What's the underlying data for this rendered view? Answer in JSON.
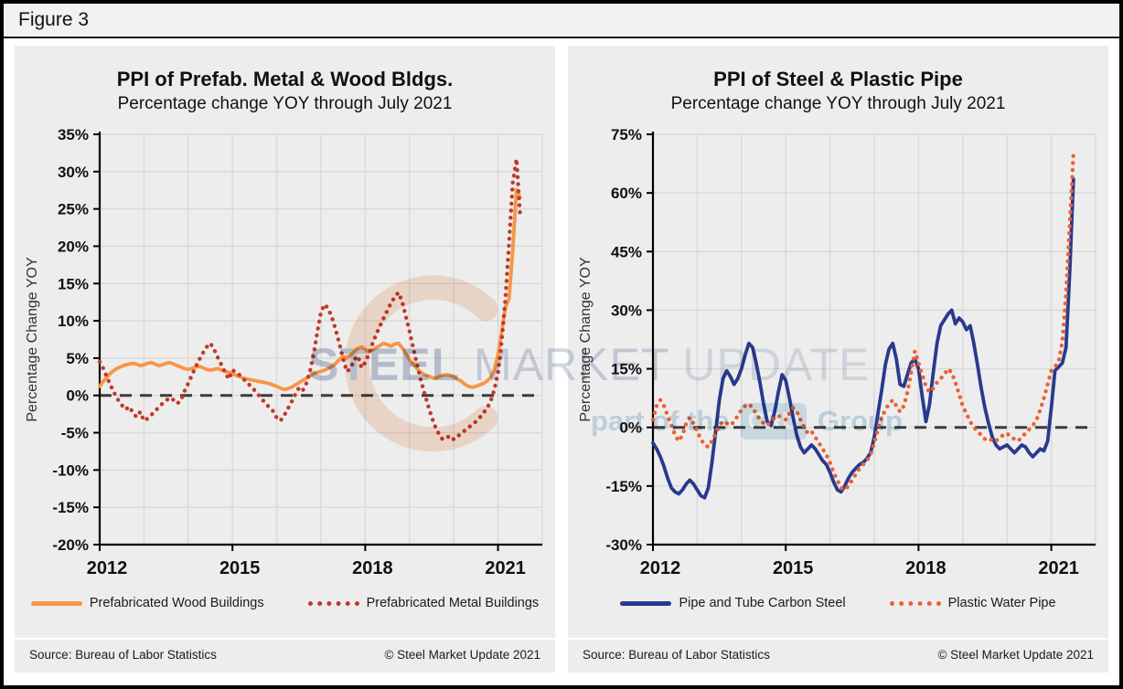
{
  "figure_label": "Figure 3",
  "watermark": {
    "steel": "STEEL",
    "market": "MARKET",
    "update": "UPDATE",
    "part_of": "part of the",
    "cru": "CRU",
    "group": "Group",
    "crescent_color": "#e8813e",
    "text_color_primary": "#8fa0bf",
    "text_color_secondary": "#9dc3de"
  },
  "panels": [
    {
      "source": "Source: Bureau of Labor Statistics",
      "copyright": "© Steel Market Update 2021"
    },
    {
      "source": "Source: Bureau of Labor Statistics",
      "copyright": "© Steel Market Update 2021"
    }
  ],
  "chart_data": [
    {
      "type": "line",
      "title": "PPI of Prefab. Metal & Wood Bldgs.",
      "subtitle": "Percentage change YOY through July 2021",
      "ylabel": "Percentage Change YOY",
      "x_start": 2012,
      "x_end": 2022,
      "x_frequency": "monthly",
      "x_range_label": "Jan 2012 - Jul 2021",
      "xticks": [
        2012,
        2015,
        2018,
        2021
      ],
      "ylim": [
        -20,
        35
      ],
      "ystep": 5,
      "grid": true,
      "zero_line": "dashed",
      "legend_position": "bottom",
      "series": [
        {
          "name": "Prefabricated Wood Buildings",
          "color": "#F79646",
          "style": "solid",
          "values": [
            1.2,
            1.9,
            2.5,
            3.0,
            3.4,
            3.7,
            3.9,
            4.1,
            4.2,
            4.3,
            4.2,
            4.0,
            4.1,
            4.3,
            4.4,
            4.2,
            4.0,
            4.1,
            4.3,
            4.4,
            4.2,
            4.0,
            3.8,
            3.6,
            3.5,
            3.6,
            3.8,
            3.9,
            3.7,
            3.5,
            3.4,
            3.5,
            3.6,
            3.4,
            3.2,
            3.1,
            2.9,
            2.7,
            2.5,
            2.3,
            2.2,
            2.1,
            2.0,
            1.9,
            1.8,
            1.7,
            1.6,
            1.4,
            1.2,
            1.0,
            0.8,
            0.9,
            1.1,
            1.4,
            1.7,
            2.0,
            2.3,
            2.6,
            2.9,
            3.1,
            3.2,
            3.4,
            3.6,
            3.9,
            4.3,
            4.8,
            5.2,
            5.0,
            5.4,
            5.9,
            6.3,
            6.5,
            6.2,
            5.8,
            6.1,
            6.4,
            6.7,
            7.0,
            6.8,
            6.6,
            6.9,
            7.0,
            6.4,
            5.6,
            4.8,
            4.2,
            3.6,
            3.1,
            2.8,
            2.6,
            2.4,
            2.3,
            2.5,
            2.7,
            2.8,
            2.7,
            2.5,
            2.2,
            1.9,
            1.5,
            1.2,
            1.1,
            1.2,
            1.4,
            1.6,
            1.9,
            2.4,
            3.5,
            5.5,
            8.5,
            11.8,
            13.0,
            19.5,
            27.6,
            26.5
          ]
        },
        {
          "name": "Prefabricated Metal Buildings",
          "color": "#C0392B",
          "style": "dotted",
          "values": [
            4.5,
            3.6,
            2.4,
            1.3,
            0.3,
            -0.6,
            -1.3,
            -1.9,
            -1.5,
            -2.3,
            -2.9,
            -2.2,
            -3.4,
            -3.1,
            -2.6,
            -2.1,
            -1.6,
            -1.1,
            -0.7,
            -0.3,
            -0.6,
            -1.1,
            -0.7,
            0.6,
            1.6,
            2.7,
            3.8,
            4.8,
            5.7,
            6.5,
            7.0,
            6.2,
            5.1,
            4.1,
            3.1,
            2.2,
            3.4,
            3.1,
            2.7,
            2.2,
            1.7,
            1.2,
            0.7,
            0.1,
            -0.5,
            -1.1,
            -1.6,
            -2.1,
            -3.0,
            -3.4,
            -2.7,
            -1.8,
            -0.9,
            0.1,
            1.0,
            0.6,
            1.6,
            3.2,
            5.5,
            8.5,
            11.2,
            12.2,
            11.6,
            10.4,
            8.8,
            6.9,
            4.9,
            3.2,
            3.6,
            4.8,
            5.3,
            3.7,
            4.4,
            5.6,
            7.0,
            8.2,
            9.3,
            10.4,
            11.4,
            12.4,
            13.2,
            13.8,
            12.6,
            10.6,
            8.6,
            6.4,
            4.2,
            2.2,
            0.4,
            -1.3,
            -2.9,
            -4.2,
            -5.2,
            -5.9,
            -5.7,
            -5.4,
            -5.9,
            -5.5,
            -5.1,
            -4.7,
            -4.3,
            -3.9,
            -3.5,
            -3.0,
            -2.4,
            -1.7,
            -0.8,
            0.8,
            3.0,
            7.3,
            13.0,
            20.5,
            28.5,
            31.7,
            24.0
          ]
        }
      ]
    },
    {
      "type": "line",
      "title": "PPI of Steel & Plastic Pipe",
      "subtitle": "Percentage change YOY through July 2021",
      "ylabel": "Percentage Change YOY",
      "x_start": 2012,
      "x_end": 2022,
      "x_frequency": "monthly",
      "x_range_label": "Jan 2012 - Jul 2021",
      "xticks": [
        2012,
        2015,
        2018,
        2021
      ],
      "ylim": [
        -30,
        75
      ],
      "ystep": 15,
      "grid": true,
      "zero_line": "dashed",
      "legend_position": "bottom",
      "series": [
        {
          "name": "Pipe and Tube Carbon Steel",
          "color": "#283A8E",
          "style": "solid",
          "values": [
            -4.0,
            -5.5,
            -7.5,
            -10.0,
            -13.0,
            -15.5,
            -16.5,
            -17.0,
            -16.0,
            -14.5,
            -13.5,
            -14.5,
            -16.0,
            -17.5,
            -18.0,
            -15.5,
            -9.0,
            -1.0,
            7.0,
            12.5,
            14.5,
            13.0,
            11.0,
            12.5,
            15.0,
            18.5,
            21.5,
            20.5,
            16.5,
            11.5,
            6.0,
            1.5,
            0.5,
            4.0,
            9.0,
            13.5,
            12.0,
            7.5,
            2.5,
            -2.0,
            -5.0,
            -6.5,
            -5.5,
            -4.5,
            -5.5,
            -7.0,
            -8.5,
            -9.5,
            -11.5,
            -14.0,
            -16.0,
            -16.5,
            -15.0,
            -13.0,
            -11.5,
            -10.5,
            -9.5,
            -9.0,
            -8.0,
            -6.5,
            -2.5,
            3.5,
            9.5,
            16.0,
            20.0,
            21.5,
            17.5,
            11.0,
            10.5,
            13.5,
            16.5,
            17.5,
            15.0,
            8.0,
            1.5,
            6.0,
            14.0,
            21.5,
            26.0,
            27.5,
            29.0,
            30.0,
            26.5,
            28.0,
            27.0,
            25.0,
            26.0,
            21.5,
            16.0,
            10.0,
            5.0,
            1.0,
            -2.5,
            -4.5,
            -5.5,
            -5.0,
            -4.5,
            -5.5,
            -6.5,
            -5.5,
            -4.5,
            -5.0,
            -6.5,
            -7.5,
            -6.5,
            -5.5,
            -6.0,
            -3.5,
            5.0,
            14.5,
            15.5,
            16.5,
            20.5,
            40.0,
            63.5
          ]
        },
        {
          "name": "Plastic Water Pipe",
          "color": "#EC6033",
          "style": "dotted",
          "values": [
            2.0,
            5.5,
            7.0,
            5.5,
            3.0,
            0.5,
            -2.0,
            -3.5,
            -2.0,
            1.0,
            2.5,
            1.0,
            -1.0,
            -3.0,
            -4.5,
            -5.0,
            -3.5,
            -1.5,
            0.5,
            1.5,
            1.0,
            0.5,
            1.5,
            3.0,
            4.5,
            5.5,
            6.0,
            5.0,
            3.5,
            2.0,
            1.0,
            0.5,
            1.5,
            2.5,
            3.0,
            2.5,
            2.0,
            3.5,
            5.0,
            4.0,
            2.0,
            0.0,
            -1.5,
            -1.0,
            -2.5,
            -4.0,
            -5.5,
            -7.0,
            -9.0,
            -11.5,
            -13.5,
            -15.5,
            -16.0,
            -15.0,
            -13.5,
            -12.0,
            -10.5,
            -9.5,
            -8.5,
            -7.0,
            -4.0,
            -0.5,
            2.5,
            4.5,
            6.0,
            7.0,
            5.5,
            4.0,
            5.5,
            9.0,
            14.0,
            19.5,
            16.5,
            13.5,
            10.5,
            9.0,
            10.0,
            11.5,
            12.5,
            13.5,
            15.0,
            14.0,
            11.5,
            8.5,
            5.5,
            3.5,
            1.5,
            0.0,
            -1.0,
            -2.0,
            -3.0,
            -3.5,
            -3.0,
            -3.5,
            -2.5,
            -2.0,
            -1.5,
            -2.5,
            -3.0,
            -3.5,
            -2.5,
            -1.5,
            -0.5,
            0.5,
            2.0,
            4.5,
            7.5,
            11.0,
            14.5,
            15.5,
            17.0,
            22.0,
            34.0,
            52.0,
            70.0
          ]
        }
      ]
    }
  ]
}
